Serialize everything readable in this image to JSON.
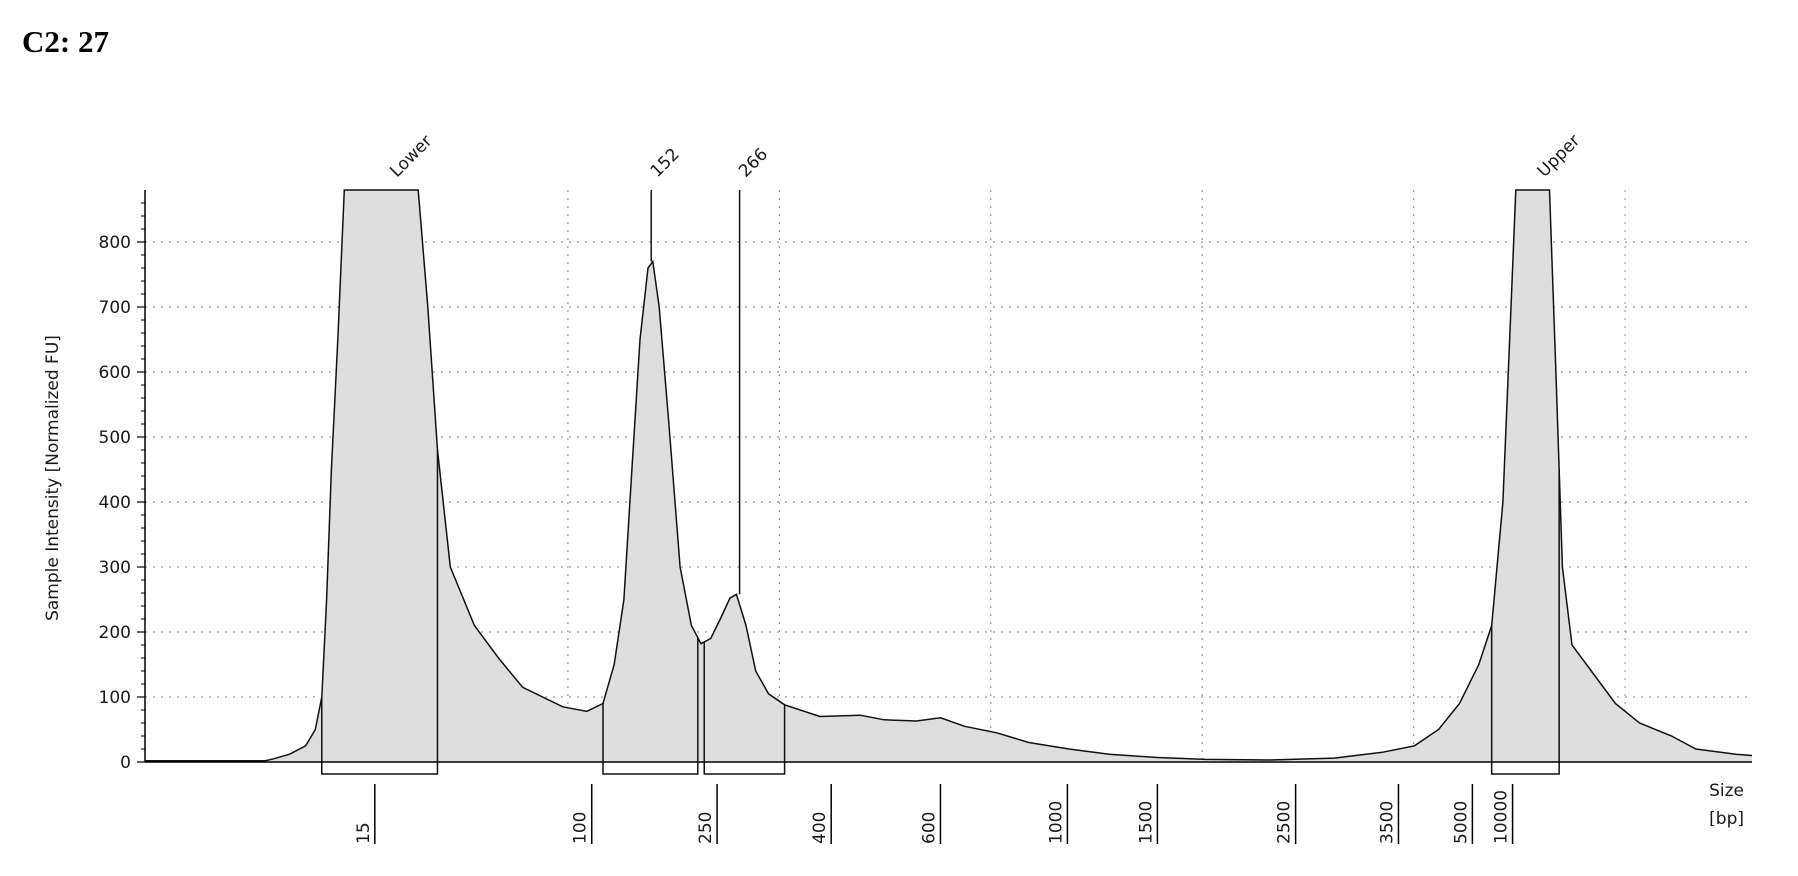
{
  "sample_label": "C2: 27",
  "chart_data": {
    "type": "area",
    "ylabel": "Sample Intensity [Normalized FU]",
    "xlabel_line1": "Size",
    "xlabel_line2": "[bp]",
    "ylim": [
      0,
      880
    ],
    "y_ticks": [
      0,
      100,
      200,
      300,
      400,
      500,
      600,
      700,
      800
    ],
    "x_ticks": [
      {
        "label": "15",
        "pos": 0.143
      },
      {
        "label": "100",
        "pos": 0.278
      },
      {
        "label": "250",
        "pos": 0.356
      },
      {
        "label": "400",
        "pos": 0.427
      },
      {
        "label": "600",
        "pos": 0.495
      },
      {
        "label": "1000",
        "pos": 0.574
      },
      {
        "label": "1500",
        "pos": 0.63
      },
      {
        "label": "2500",
        "pos": 0.716
      },
      {
        "label": "3500",
        "pos": 0.78
      },
      {
        "label": "5000",
        "pos": 0.826
      },
      {
        "label": "10000",
        "pos": 0.851
      }
    ],
    "grid": true,
    "peaks": [
      {
        "label": "Lower",
        "pos": 0.153,
        "value": 880,
        "region": [
          0.11,
          0.182
        ]
      },
      {
        "label": "152",
        "pos": 0.315,
        "value": 770,
        "region": [
          0.285,
          0.344
        ]
      },
      {
        "label": "266",
        "pos": 0.37,
        "value": 258,
        "region": [
          0.348,
          0.398
        ]
      },
      {
        "label": "Upper",
        "pos": 0.867,
        "value": 880,
        "region": [
          0.838,
          0.88
        ]
      }
    ],
    "series": [
      {
        "points": [
          [
            0.0,
            2
          ],
          [
            0.06,
            2
          ],
          [
            0.075,
            2
          ],
          [
            0.08,
            5
          ],
          [
            0.09,
            12
          ],
          [
            0.1,
            25
          ],
          [
            0.106,
            50
          ],
          [
            0.11,
            100
          ],
          [
            0.113,
            250
          ],
          [
            0.116,
            450
          ],
          [
            0.12,
            650
          ],
          [
            0.124,
            880
          ],
          [
            0.17,
            880
          ],
          [
            0.176,
            700
          ],
          [
            0.182,
            480
          ],
          [
            0.19,
            300
          ],
          [
            0.205,
            210
          ],
          [
            0.22,
            160
          ],
          [
            0.235,
            115
          ],
          [
            0.26,
            85
          ],
          [
            0.275,
            78
          ],
          [
            0.285,
            90
          ],
          [
            0.292,
            150
          ],
          [
            0.298,
            250
          ],
          [
            0.303,
            450
          ],
          [
            0.308,
            650
          ],
          [
            0.313,
            760
          ],
          [
            0.316,
            770
          ],
          [
            0.32,
            700
          ],
          [
            0.326,
            520
          ],
          [
            0.333,
            300
          ],
          [
            0.34,
            210
          ],
          [
            0.346,
            182
          ],
          [
            0.352,
            190
          ],
          [
            0.358,
            220
          ],
          [
            0.364,
            252
          ],
          [
            0.368,
            258
          ],
          [
            0.374,
            210
          ],
          [
            0.38,
            140
          ],
          [
            0.388,
            105
          ],
          [
            0.398,
            88
          ],
          [
            0.42,
            70
          ],
          [
            0.445,
            72
          ],
          [
            0.46,
            65
          ],
          [
            0.48,
            63
          ],
          [
            0.495,
            68
          ],
          [
            0.51,
            55
          ],
          [
            0.53,
            45
          ],
          [
            0.55,
            30
          ],
          [
            0.575,
            20
          ],
          [
            0.6,
            12
          ],
          [
            0.63,
            7
          ],
          [
            0.66,
            4
          ],
          [
            0.7,
            3
          ],
          [
            0.74,
            6
          ],
          [
            0.77,
            15
          ],
          [
            0.79,
            25
          ],
          [
            0.805,
            50
          ],
          [
            0.818,
            90
          ],
          [
            0.83,
            150
          ],
          [
            0.838,
            210
          ],
          [
            0.845,
            400
          ],
          [
            0.85,
            700
          ],
          [
            0.853,
            880
          ],
          [
            0.874,
            880
          ],
          [
            0.878,
            600
          ],
          [
            0.882,
            300
          ],
          [
            0.888,
            180
          ],
          [
            0.9,
            140
          ],
          [
            0.915,
            90
          ],
          [
            0.93,
            60
          ],
          [
            0.95,
            40
          ],
          [
            0.965,
            20
          ],
          [
            0.99,
            12
          ],
          [
            1.0,
            10
          ]
        ]
      }
    ]
  }
}
